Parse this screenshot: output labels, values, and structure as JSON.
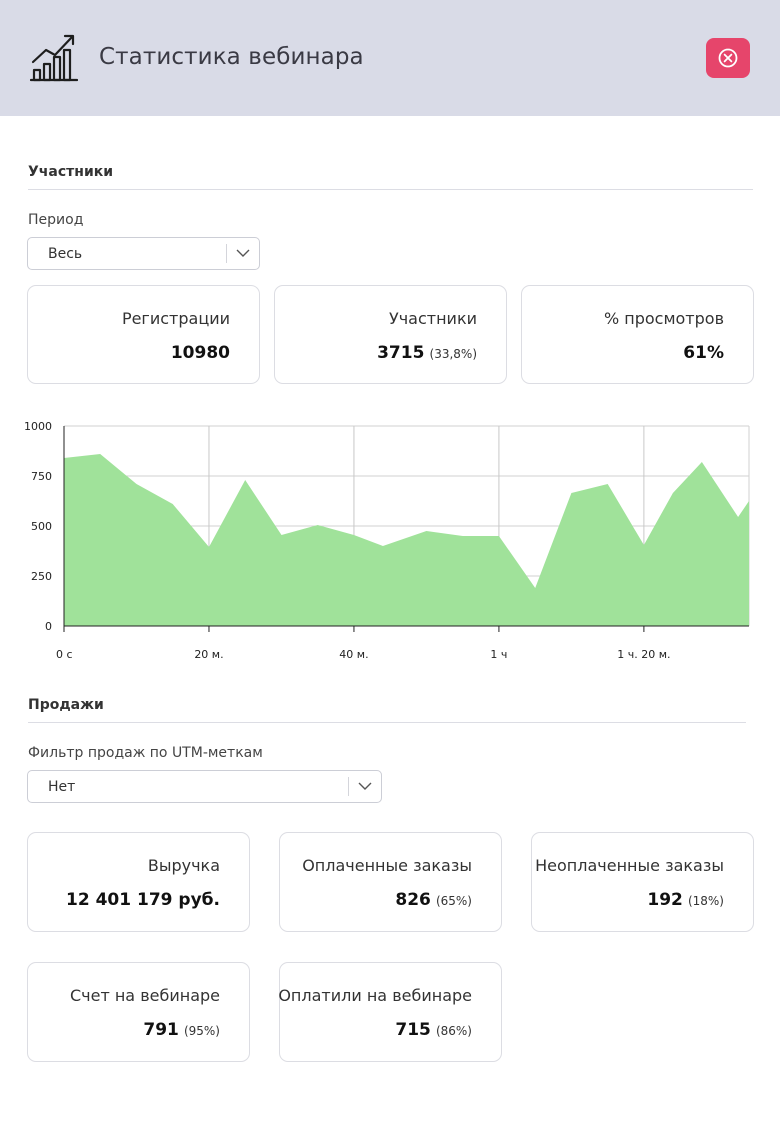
{
  "header": {
    "title": "Статистика вебинара",
    "icon": "chart-growth-icon",
    "close_icon": "close-circle-icon",
    "close_color": "#e6456b"
  },
  "participants_section": {
    "title": "Участники",
    "period_label": "Период",
    "period_value": "Весь",
    "cards": [
      {
        "label": "Регистрации",
        "value": "10980",
        "extra": ""
      },
      {
        "label": "Участники",
        "value": "3715",
        "extra": "(33,8%)"
      },
      {
        "label": "% просмотров",
        "value": "61%",
        "extra": ""
      }
    ]
  },
  "chart_data": {
    "type": "area",
    "color": "#a0e29a",
    "ylim": [
      0,
      1000
    ],
    "yticks": [
      "0",
      "250",
      "500",
      "750",
      "1000"
    ],
    "xticks": [
      {
        "label": "0 с",
        "minute": 0
      },
      {
        "label": "20 м.",
        "minute": 20
      },
      {
        "label": "40 м.",
        "minute": 40
      },
      {
        "label": "1 ч",
        "minute": 60
      },
      {
        "label": "1 ч. 20 м.",
        "minute": 80
      }
    ],
    "xmax_minutes": 94.5,
    "grid": true,
    "x": [
      0,
      5,
      10,
      15,
      20,
      25,
      30,
      35,
      40,
      44,
      50,
      55,
      60,
      65,
      70,
      75,
      80,
      84,
      88,
      93,
      94.5
    ],
    "values": [
      840,
      860,
      710,
      610,
      395,
      730,
      455,
      505,
      455,
      400,
      475,
      450,
      450,
      190,
      665,
      710,
      405,
      665,
      820,
      545,
      625
    ]
  },
  "sales_section": {
    "title": "Продажи",
    "filter_label": "Фильтр продаж по UTM-меткам",
    "filter_value": "Нет",
    "cards_row1": [
      {
        "label": "Выручка",
        "value": "12 401 179 руб.",
        "extra": ""
      },
      {
        "label": "Оплаченные заказы",
        "value": "826",
        "extra": "(65%)"
      },
      {
        "label": "Неоплаченные заказы",
        "value": "192",
        "extra": "(18%)"
      }
    ],
    "cards_row2": [
      {
        "label": "Счет на вебинаре",
        "value": "791",
        "extra": "(95%)"
      },
      {
        "label": "Оплатили на вебинаре",
        "value": "715",
        "extra": "(86%)"
      }
    ]
  }
}
